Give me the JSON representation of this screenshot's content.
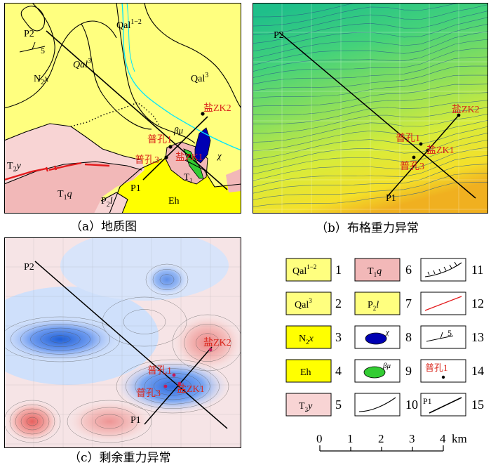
{
  "panel_a": {
    "caption": "（a）地质图",
    "labels": {
      "p2": "P2",
      "p1": "P1",
      "dip": "5",
      "qal12_a": "Qal",
      "qal12_b": "1−2",
      "qal3_a_1": "Qal",
      "qal3_a_2": "3",
      "qal3_b_1": "Qal",
      "qal3_b_2": "3",
      "n2x_1": "N",
      "n2x_2": "2",
      "n2x_3": "x",
      "t2y_1": "T",
      "t2y_2": "2",
      "t2y_3": "y",
      "t1q_1": "T",
      "t1q_2": "1",
      "t1q_3": "q",
      "p2l_1": "P",
      "p2l_2": "2",
      "p2l_3": "l",
      "eh": "Eh",
      "beta_mu": "βμ",
      "chi": "χ",
      "t1_1": "T",
      "t1_2": "1"
    },
    "wells": {
      "zk2": "盐ZK2",
      "pu1": "普孔1",
      "pu3": "普孔3",
      "zk1": "盐ZK1"
    }
  },
  "panel_b": {
    "caption": "（b）布格重力异常",
    "labels": {
      "p2": "P2",
      "p1": "P1"
    },
    "wells": {
      "zk2": "盐ZK2",
      "pu1": "普孔1",
      "pu3": "普孔3",
      "zk1": "盐ZK1"
    }
  },
  "panel_c": {
    "caption": "（c）剩余重力异常",
    "labels": {
      "p2": "P2",
      "p1": "P1"
    },
    "wells": {
      "zk2": "盐ZK2",
      "pu1": "普孔1",
      "pu3": "普孔3",
      "zk1": "盐ZK1"
    }
  },
  "legend": {
    "items": [
      {
        "n": "1",
        "lab": "Qal",
        "sup": "1−2"
      },
      {
        "n": "2",
        "lab": "Qal",
        "sup": "3"
      },
      {
        "n": "3",
        "lab": "N",
        "sub": "2",
        "tail": "x"
      },
      {
        "n": "4",
        "lab": "Eh"
      },
      {
        "n": "5",
        "lab": "T",
        "sub": "2",
        "tail": "y"
      },
      {
        "n": "6",
        "lab": "T",
        "sub": "1",
        "tail": "q"
      },
      {
        "n": "7",
        "lab": "P",
        "sub": "2",
        "tail": "l"
      },
      {
        "n": "8",
        "sym": "χ"
      },
      {
        "n": "9",
        "sym": "βμ"
      },
      {
        "n": "10"
      },
      {
        "n": "11"
      },
      {
        "n": "12"
      },
      {
        "n": "13",
        "sym": "5"
      },
      {
        "n": "14",
        "sym": "普孔1"
      },
      {
        "n": "15",
        "sym": "P1"
      }
    ]
  },
  "scale": {
    "ticks": [
      "0",
      "1",
      "2",
      "3",
      "4"
    ],
    "unit": "km"
  },
  "colors": {
    "qal_yellow": "#ffff7f",
    "eh_yellow": "#ffff00",
    "t_pink": "#f2b8b8",
    "t_light_pink": "#f8d4d4",
    "intrusion_blue": "#0000b3",
    "intrusion_green": "#33cc33",
    "fault_red": "#e31a1c",
    "river_cyan": "#00e5ff",
    "well_red": "#d9261c"
  }
}
